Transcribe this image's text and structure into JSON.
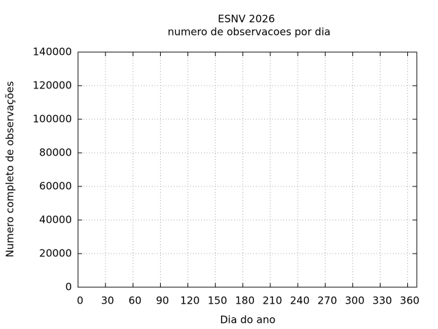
{
  "chart_data": {
    "type": "line",
    "title": "ESNV 2026",
    "subtitle": "numero de observacoes por dia",
    "x_label": "Dia do ano",
    "y_label": "Numero completo de observações",
    "xlim": [
      0,
      370
    ],
    "xticks": [
      0,
      30,
      60,
      90,
      120,
      150,
      180,
      210,
      240,
      270,
      300,
      330,
      360
    ],
    "ylim": [
      0,
      140000
    ],
    "yticks": [
      0,
      20000,
      40000,
      60000,
      80000,
      100000,
      120000,
      140000
    ],
    "grid": true,
    "series": []
  }
}
